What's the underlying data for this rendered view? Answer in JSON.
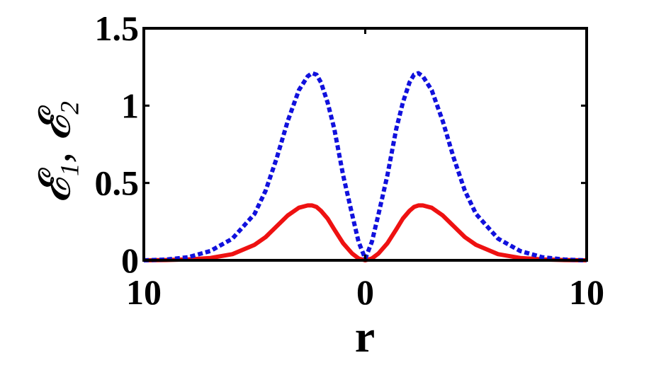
{
  "chart_data": {
    "type": "line",
    "title": "",
    "xlabel": "r",
    "ylabel": "𝓔₁,  𝓔₂",
    "xlim": [
      -10,
      10
    ],
    "ylim": [
      0,
      1.5
    ],
    "x_ticks": [
      -10,
      0,
      10
    ],
    "x_tick_labels": [
      "10",
      "0",
      "10"
    ],
    "y_ticks": [
      0,
      0.5,
      1,
      1.5
    ],
    "y_tick_labels": [
      "0",
      "0.5",
      "1",
      "1.5"
    ],
    "grid": false,
    "series": [
      {
        "style": "solid",
        "color": "#ee1111",
        "x": [
          -10,
          -9,
          -8,
          -7,
          -6,
          -5,
          -4.5,
          -4,
          -3.5,
          -3,
          -2.6,
          -2.4,
          -2.2,
          -2,
          -1.7,
          -1.4,
          -1,
          -0.6,
          -0.3,
          0,
          0.3,
          0.6,
          1,
          1.4,
          1.7,
          2,
          2.2,
          2.4,
          2.6,
          3,
          3.5,
          4,
          4.5,
          5,
          6,
          7,
          8,
          9,
          10
        ],
        "y": [
          0.0,
          0.002,
          0.006,
          0.015,
          0.04,
          0.1,
          0.15,
          0.22,
          0.29,
          0.34,
          0.355,
          0.355,
          0.345,
          0.32,
          0.27,
          0.2,
          0.11,
          0.045,
          0.012,
          0.0,
          0.012,
          0.045,
          0.11,
          0.2,
          0.27,
          0.32,
          0.345,
          0.355,
          0.355,
          0.34,
          0.29,
          0.22,
          0.15,
          0.1,
          0.04,
          0.015,
          0.006,
          0.002,
          0.0
        ]
      },
      {
        "style": "dotted",
        "color": "#1111dd",
        "x": [
          -10,
          -9,
          -8,
          -7,
          -6,
          -5,
          -4.5,
          -4,
          -3.5,
          -3,
          -2.6,
          -2.4,
          -2.2,
          -2,
          -1.7,
          -1.4,
          -1,
          -0.6,
          -0.3,
          0,
          0.3,
          0.6,
          1,
          1.4,
          1.7,
          2,
          2.2,
          2.4,
          2.6,
          3,
          3.5,
          4,
          4.5,
          5,
          6,
          7,
          8,
          9,
          10
        ],
        "y": [
          0.0,
          0.005,
          0.02,
          0.06,
          0.14,
          0.3,
          0.45,
          0.66,
          0.9,
          1.1,
          1.19,
          1.21,
          1.2,
          1.15,
          1.02,
          0.85,
          0.55,
          0.3,
          0.12,
          0.01,
          0.12,
          0.3,
          0.55,
          0.85,
          1.02,
          1.15,
          1.2,
          1.21,
          1.19,
          1.1,
          0.9,
          0.66,
          0.45,
          0.3,
          0.14,
          0.06,
          0.02,
          0.005,
          0.0
        ]
      }
    ]
  }
}
